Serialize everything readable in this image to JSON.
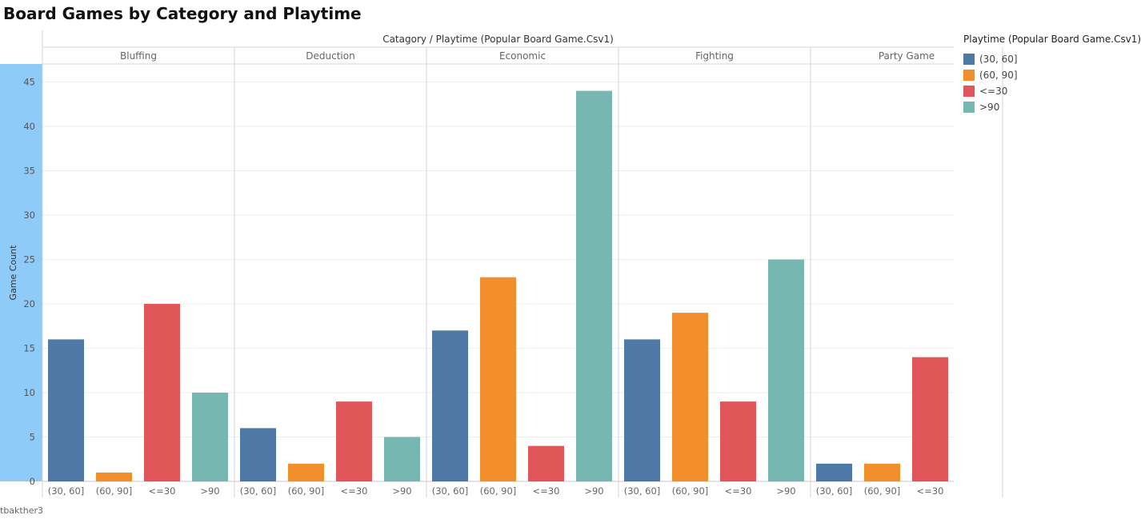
{
  "title": "Board Games by Category and Playtime",
  "footer": "tbakther3",
  "chart_data": {
    "type": "bar",
    "header": "Catagory / Playtime (Popular Board Game.Csv1)",
    "ylabel": "Game Count",
    "ylim": [
      0,
      45
    ],
    "yticks": [
      0,
      5,
      10,
      15,
      20,
      25,
      30,
      35,
      40,
      45
    ],
    "grid": true,
    "panels": [
      {
        "category": "Bluffing",
        "bars": [
          {
            "x": "(30, 60]",
            "value": 16
          },
          {
            "x": "(60, 90]",
            "value": 1
          },
          {
            "x": "<=30",
            "value": 20
          },
          {
            "x": ">90",
            "value": 10
          }
        ]
      },
      {
        "category": "Deduction",
        "bars": [
          {
            "x": "(30, 60]",
            "value": 6
          },
          {
            "x": "(60, 90]",
            "value": 2
          },
          {
            "x": "<=30",
            "value": 9
          },
          {
            "x": ">90",
            "value": 5
          }
        ]
      },
      {
        "category": "Economic",
        "bars": [
          {
            "x": "(30, 60]",
            "value": 17
          },
          {
            "x": "(60, 90]",
            "value": 23
          },
          {
            "x": "<=30",
            "value": 4
          },
          {
            "x": ">90",
            "value": 44
          }
        ]
      },
      {
        "category": "Fighting",
        "bars": [
          {
            "x": "(30, 60]",
            "value": 16
          },
          {
            "x": "(60, 90]",
            "value": 19
          },
          {
            "x": "<=30",
            "value": 9
          },
          {
            "x": ">90",
            "value": 25
          }
        ]
      },
      {
        "category": "Party Game",
        "bars": [
          {
            "x": "(30, 60]",
            "value": 2
          },
          {
            "x": "(60, 90]",
            "value": 2
          },
          {
            "x": "<=30",
            "value": 14
          }
        ]
      }
    ],
    "colors": {
      "(30, 60]": "#4e79a7",
      "(60, 90]": "#f28e2b",
      "<=30": "#e15759",
      ">90": "#76b7b2"
    },
    "axis_highlight_color": "#8ecbf8"
  },
  "legend": {
    "title": "Playtime (Popular Board Game.Csv1)",
    "items": [
      {
        "label": "(30, 60]",
        "color": "#4e79a7"
      },
      {
        "label": "(60, 90]",
        "color": "#f28e2b"
      },
      {
        "label": "<=30",
        "color": "#e15759"
      },
      {
        "label": ">90",
        "color": "#76b7b2"
      }
    ]
  }
}
